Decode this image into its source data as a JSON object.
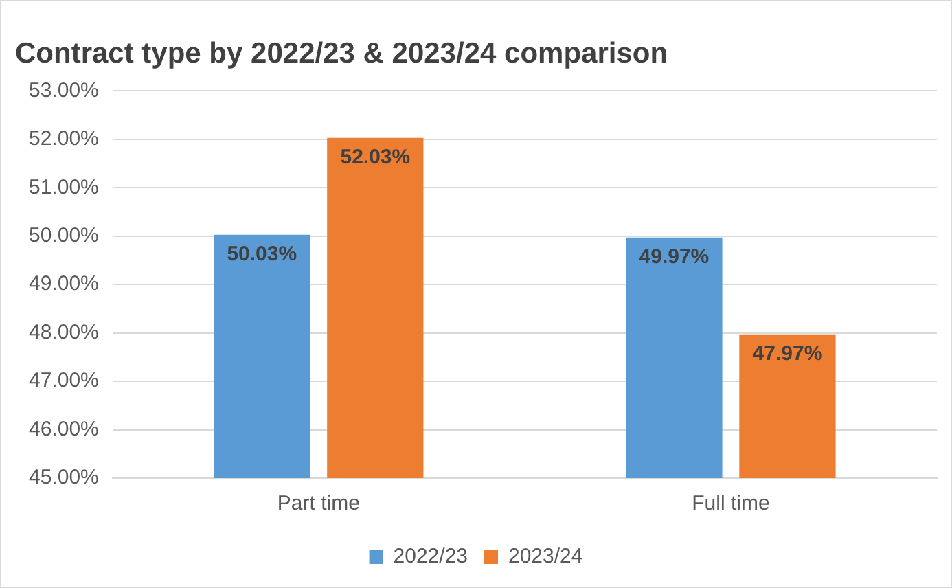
{
  "chart_data": {
    "type": "bar",
    "title": "Contract type by 2022/23 & 2023/24 comparison",
    "categories": [
      "Part time",
      "Full time"
    ],
    "series": [
      {
        "name": "2022/23",
        "color": "#5b9bd5",
        "values": [
          50.03,
          49.97
        ],
        "value_labels": [
          "50.03%",
          "49.97%"
        ]
      },
      {
        "name": "2023/24",
        "color": "#ed7d31",
        "values": [
          52.03,
          47.97
        ],
        "value_labels": [
          "52.03%",
          "47.97%"
        ]
      }
    ],
    "ylim": [
      45,
      53
    ],
    "yticks": [
      {
        "value": 45,
        "label": "45.00%"
      },
      {
        "value": 46,
        "label": "46.00%"
      },
      {
        "value": 47,
        "label": "47.00%"
      },
      {
        "value": 48,
        "label": "48.00%"
      },
      {
        "value": 49,
        "label": "49.00%"
      },
      {
        "value": 50,
        "label": "50.00%"
      },
      {
        "value": 51,
        "label": "51.00%"
      },
      {
        "value": 52,
        "label": "52.00%"
      },
      {
        "value": 53,
        "label": "53.00%"
      }
    ],
    "grid": "y",
    "legend": "bottom"
  }
}
